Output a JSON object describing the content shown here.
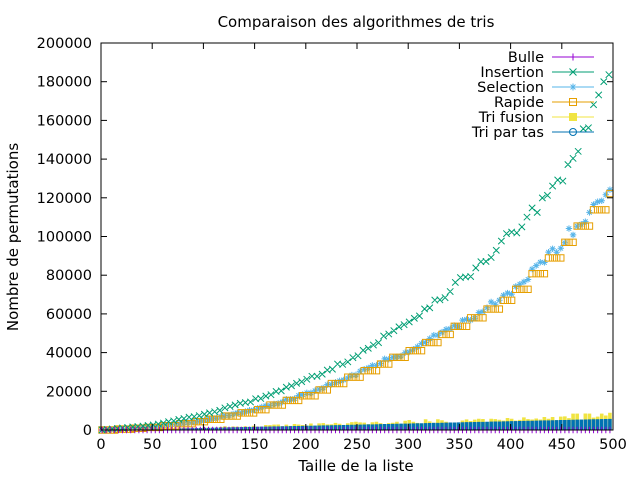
{
  "chart_data": {
    "type": "scatter",
    "title": "Comparaison des algorithmes de tris",
    "xlabel": "Taille de la liste",
    "ylabel": "Nombre de permutations",
    "xlim": [
      0,
      500
    ],
    "ylim": [
      0,
      200000
    ],
    "x_ticks": [
      0,
      50,
      100,
      150,
      200,
      250,
      300,
      350,
      400,
      450,
      500
    ],
    "y_ticks": [
      0,
      20000,
      40000,
      60000,
      80000,
      100000,
      120000,
      140000,
      160000,
      180000,
      200000
    ],
    "grid": false,
    "legend_position": "top-right",
    "series": [
      {
        "name": "Bulle",
        "marker": "plus",
        "color": "#9400d3",
        "x": [
          0,
          50,
          100,
          150,
          200,
          250,
          300,
          350,
          400,
          450,
          500
        ],
        "values": [
          0,
          0,
          0,
          0,
          0,
          0,
          0,
          0,
          0,
          0,
          0
        ]
      },
      {
        "name": "Insertion",
        "marker": "cross",
        "color": "#009e73",
        "x": [
          0,
          50,
          100,
          150,
          200,
          250,
          300,
          350,
          400,
          450,
          500
        ],
        "values": [
          0,
          2500,
          8000,
          15500,
          25500,
          38500,
          56000,
          76000,
          100500,
          128000,
          188000
        ]
      },
      {
        "name": "Selection",
        "marker": "star",
        "color": "#56b4e9",
        "x": [
          0,
          50,
          100,
          150,
          200,
          250,
          300,
          350,
          400,
          450,
          500
        ],
        "values": [
          0,
          1500,
          5000,
          10500,
          18500,
          29500,
          41000,
          55000,
          70000,
          97000,
          127000
        ]
      },
      {
        "name": "Rapide",
        "marker": "square",
        "color": "#e69f00",
        "x": [
          0,
          50,
          100,
          150,
          200,
          250,
          300,
          350,
          400,
          450,
          500
        ],
        "values": [
          0,
          1500,
          5000,
          10500,
          18500,
          29500,
          41000,
          55000,
          70000,
          97000,
          125000
        ]
      },
      {
        "name": "Tri fusion",
        "marker": "filled-square",
        "color": "#f0e442",
        "x": [
          0,
          50,
          100,
          150,
          200,
          250,
          300,
          350,
          400,
          450,
          500
        ],
        "values": [
          0,
          600,
          1400,
          2300,
          3200,
          4200,
          5200,
          6200,
          7300,
          8400,
          9500
        ]
      },
      {
        "name": "Tri par tas",
        "marker": "circle",
        "color": "#0072b2",
        "x": [
          0,
          50,
          100,
          150,
          200,
          250,
          300,
          350,
          400,
          450,
          500
        ],
        "values": [
          0,
          400,
          900,
          1500,
          2000,
          2600,
          3200,
          3800,
          4400,
          5000,
          5600
        ]
      }
    ]
  }
}
